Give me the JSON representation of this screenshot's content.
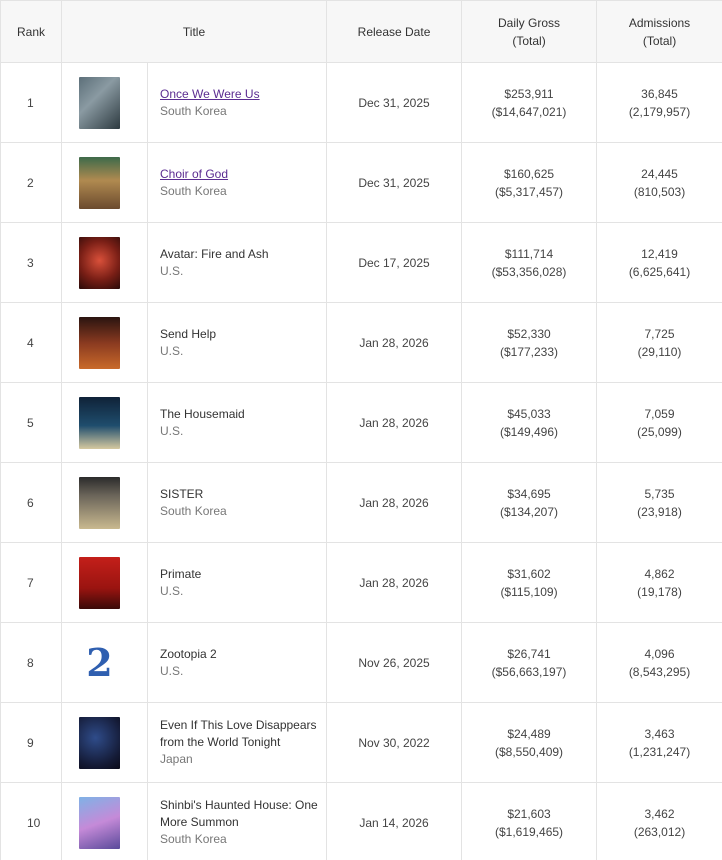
{
  "headers": {
    "rank": "Rank",
    "title": "Title",
    "release": "Release Date",
    "gross_l1": "Daily Gross",
    "gross_l2": "(Total)",
    "adm_l1": "Admissions",
    "adm_l2": "(Total)"
  },
  "rows": [
    {
      "rank": "1",
      "title": "Once We Were Us",
      "country": "South Korea",
      "date": "Dec 31, 2025",
      "gross": "$253,911",
      "gross_total": "($14,647,021)",
      "adm": "36,845",
      "adm_total": "(2,179,957)"
    },
    {
      "rank": "2",
      "title": "Choir of God",
      "country": "South Korea",
      "date": "Dec 31, 2025",
      "gross": "$160,625",
      "gross_total": "($5,317,457)",
      "adm": "24,445",
      "adm_total": "(810,503)"
    },
    {
      "rank": "3",
      "title": "Avatar: Fire and Ash",
      "country": "U.S.",
      "date": "Dec 17, 2025",
      "gross": "$111,714",
      "gross_total": "($53,356,028)",
      "adm": "12,419",
      "adm_total": "(6,625,641)"
    },
    {
      "rank": "4",
      "title": "Send Help",
      "country": "U.S.",
      "date": "Jan 28, 2026",
      "gross": "$52,330",
      "gross_total": "($177,233)",
      "adm": "7,725",
      "adm_total": "(29,110)"
    },
    {
      "rank": "5",
      "title": "The Housemaid",
      "country": "U.S.",
      "date": "Jan 28, 2026",
      "gross": "$45,033",
      "gross_total": "($149,496)",
      "adm": "7,059",
      "adm_total": "(25,099)"
    },
    {
      "rank": "6",
      "title": "SISTER",
      "country": "South Korea",
      "date": "Jan 28, 2026",
      "gross": "$34,695",
      "gross_total": "($134,207)",
      "adm": "5,735",
      "adm_total": "(23,918)"
    },
    {
      "rank": "7",
      "title": "Primate",
      "country": "U.S.",
      "date": "Jan 28, 2026",
      "gross": "$31,602",
      "gross_total": "($115,109)",
      "adm": "4,862",
      "adm_total": "(19,178)"
    },
    {
      "rank": "8",
      "title": "Zootopia 2",
      "country": "U.S.",
      "date": "Nov 26, 2025",
      "gross": "$26,741",
      "gross_total": "($56,663,197)",
      "adm": "4,096",
      "adm_total": "(8,543,295)"
    },
    {
      "rank": "9",
      "title_l1": "Even If This Love Disappears",
      "title_l2": "from the World Tonight",
      "country": "Japan",
      "date": "Nov 30, 2022",
      "gross": "$24,489",
      "gross_total": "($8,550,409)",
      "adm": "3,463",
      "adm_total": "(1,231,247)"
    },
    {
      "rank": "10",
      "title_l1": "Shinbi's Haunted House: One",
      "title_l2": "More Summon",
      "country": "South Korea",
      "date": "Jan 14, 2026",
      "gross": "$21,603",
      "gross_total": "($1,619,465)",
      "adm": "3,462",
      "adm_total": "(263,012)"
    }
  ],
  "colors": {
    "header_bg": "#f7f7f7",
    "border": "#e3e3e3",
    "link": "#5b2c91",
    "text": "#444444",
    "subtext": "#777777"
  },
  "icons": {
    "zootopia_poster_glyph": "2"
  }
}
